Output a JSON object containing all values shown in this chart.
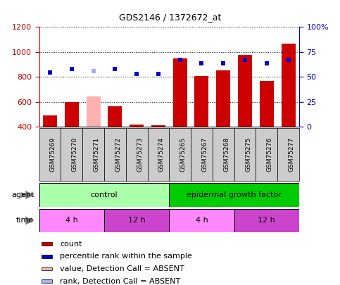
{
  "title": "GDS2146 / 1372672_at",
  "samples": [
    "GSM75269",
    "GSM75270",
    "GSM75271",
    "GSM75272",
    "GSM75273",
    "GSM75274",
    "GSM75265",
    "GSM75267",
    "GSM75268",
    "GSM75275",
    "GSM75276",
    "GSM75277"
  ],
  "bar_values": [
    490,
    600,
    645,
    565,
    420,
    410,
    950,
    810,
    855,
    975,
    770,
    1065
  ],
  "bar_colors": [
    "#cc0000",
    "#cc0000",
    "#ffb0b0",
    "#cc0000",
    "#cc0000",
    "#cc0000",
    "#cc0000",
    "#cc0000",
    "#cc0000",
    "#cc0000",
    "#cc0000",
    "#cc0000"
  ],
  "dot_values": [
    835,
    865,
    845,
    865,
    825,
    825,
    940,
    910,
    910,
    940,
    910,
    940
  ],
  "dot_colors": [
    "#0000cc",
    "#0000cc",
    "#aaaaff",
    "#0000cc",
    "#0000cc",
    "#0000cc",
    "#0000cc",
    "#0000cc",
    "#0000cc",
    "#0000cc",
    "#0000cc",
    "#0000cc"
  ],
  "ylim_left": [
    400,
    1200
  ],
  "ylim_right": [
    0,
    100
  ],
  "yticks_left": [
    400,
    600,
    800,
    1000,
    1200
  ],
  "yticks_right": [
    0,
    25,
    50,
    75,
    100
  ],
  "ytick_labels_right": [
    "0",
    "25",
    "50",
    "75",
    "100%"
  ],
  "bar_bottom": 400,
  "control_color": "#aaffaa",
  "egf_color": "#00cc00",
  "time_light_color": "#ff88ff",
  "time_dark_color": "#cc44cc",
  "legend_items": [
    {
      "label": "count",
      "color": "#cc0000"
    },
    {
      "label": "percentile rank within the sample",
      "color": "#0000cc"
    },
    {
      "label": "value, Detection Call = ABSENT",
      "color": "#ffb0b0"
    },
    {
      "label": "rank, Detection Call = ABSENT",
      "color": "#aaaaff"
    }
  ],
  "left_axis_color": "#cc0000",
  "right_axis_color": "#0000cc",
  "label_box_color": "#cccccc",
  "fig_width": 4.83,
  "fig_height": 4.05,
  "dpi": 100
}
